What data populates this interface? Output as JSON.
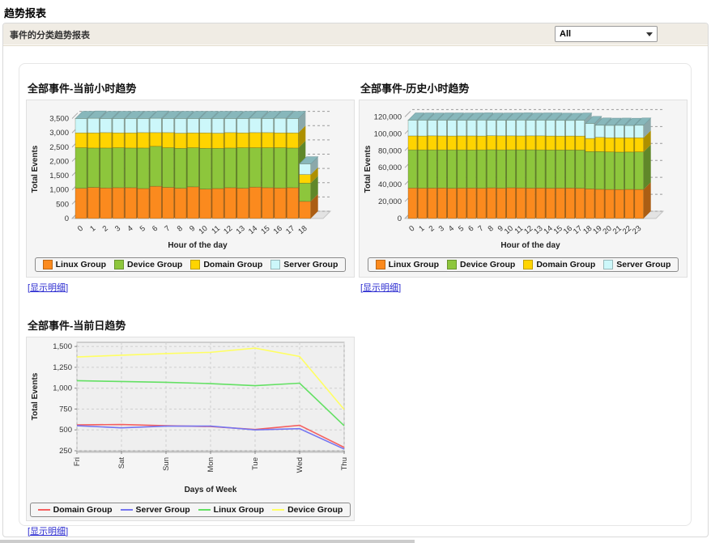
{
  "page": {
    "title": "趋势报表"
  },
  "toolbar": {
    "label": "事件的分类趋势报表",
    "filter_value": "All",
    "filter_options": [
      "All"
    ]
  },
  "links": {
    "open": "[",
    "show_detail": "显示明细",
    "close": "]"
  },
  "colors": {
    "linux_orange": "#fb8a1e",
    "device_green": "#8dc63c",
    "domain_yellow": "#ffd400",
    "server_cyan": "#ccf7fa",
    "bar_top_face": "#87b7bb",
    "line_red": "#f56060",
    "line_blue": "#7575f0",
    "line_green": "#63e063",
    "line_yellow": "#ffff63",
    "link_blue": "#2b2bd0",
    "toolbar_bg": "#f0ece4"
  },
  "chart_data": [
    {
      "id": "current-hour",
      "type": "bar",
      "variant": "stacked-3d",
      "title": "全部事件-当前小时趋势",
      "xlabel": "Hour of the day",
      "ylabel": "Total Events",
      "grid": "dashed",
      "legend_position": "bottom",
      "categories": [
        "0",
        "1",
        "2",
        "3",
        "4",
        "5",
        "6",
        "7",
        "8",
        "9",
        "10",
        "11",
        "12",
        "13",
        "14",
        "15",
        "16",
        "17",
        "18"
      ],
      "yticks": [
        0,
        500,
        1000,
        1500,
        2000,
        2500,
        3000,
        3500
      ],
      "ylim": [
        0,
        3800
      ],
      "top_face_color": "#87b7bb",
      "series": [
        {
          "name": "Linux Group",
          "color": "#fb8a1e",
          "values": [
            1060,
            1090,
            1070,
            1080,
            1080,
            1050,
            1130,
            1090,
            1060,
            1110,
            1030,
            1050,
            1080,
            1060,
            1100,
            1080,
            1070,
            1080,
            600
          ]
        },
        {
          "name": "Device Group",
          "color": "#8dc63c",
          "values": [
            1420,
            1380,
            1400,
            1400,
            1390,
            1420,
            1400,
            1390,
            1400,
            1370,
            1430,
            1410,
            1390,
            1420,
            1380,
            1400,
            1410,
            1390,
            640
          ]
        },
        {
          "name": "Domain Group",
          "color": "#ffd400",
          "values": [
            520,
            530,
            540,
            520,
            530,
            540,
            480,
            530,
            530,
            520,
            540,
            530,
            540,
            520,
            530,
            530,
            520,
            530,
            300
          ]
        },
        {
          "name": "Server Group",
          "color": "#ccf7fa",
          "values": [
            500,
            510,
            490,
            500,
            500,
            490,
            500,
            490,
            510,
            500,
            500,
            510,
            490,
            500,
            500,
            490,
            510,
            500,
            370
          ]
        }
      ]
    },
    {
      "id": "historical-hour",
      "type": "bar",
      "variant": "stacked-3d",
      "title": "全部事件-历史小时趋势",
      "xlabel": "Hour of the day",
      "ylabel": "Total Events",
      "grid": "dashed",
      "legend_position": "bottom",
      "categories": [
        "0",
        "1",
        "2",
        "3",
        "4",
        "5",
        "6",
        "7",
        "8",
        "9",
        "10",
        "11",
        "12",
        "13",
        "14",
        "15",
        "16",
        "17",
        "18",
        "19",
        "20",
        "21",
        "22",
        "23"
      ],
      "yticks": [
        0,
        20000,
        40000,
        60000,
        80000,
        100000,
        120000
      ],
      "ylim": [
        0,
        128000
      ],
      "top_face_color": "#87b7bb",
      "series": [
        {
          "name": "Linux Group",
          "color": "#fb8a1e",
          "values": [
            36000,
            35800,
            35900,
            36000,
            35700,
            35900,
            36000,
            35800,
            36200,
            35900,
            36300,
            36100,
            35900,
            36000,
            35800,
            35900,
            36000,
            35700,
            35000,
            34500,
            34300,
            34200,
            34400,
            34300
          ]
        },
        {
          "name": "Device Group",
          "color": "#8dc63c",
          "values": [
            45000,
            45200,
            45100,
            45000,
            45300,
            45100,
            44900,
            45200,
            45000,
            45100,
            44800,
            45000,
            45200,
            45000,
            45100,
            45000,
            44900,
            45100,
            44000,
            44500,
            44300,
            44200,
            44100,
            44300
          ]
        },
        {
          "name": "Domain Group",
          "color": "#ffd400",
          "values": [
            16500,
            16400,
            16600,
            16500,
            16400,
            16500,
            16600,
            16400,
            16500,
            16600,
            16500,
            16400,
            16500,
            16600,
            16500,
            16400,
            16500,
            16500,
            15500,
            16800,
            16700,
            16900,
            16800,
            16700
          ]
        },
        {
          "name": "Server Group",
          "color": "#ccf7fa",
          "values": [
            18500,
            18600,
            18300,
            18500,
            18600,
            18400,
            18500,
            18700,
            18200,
            18300,
            18400,
            18600,
            18300,
            18400,
            18600,
            18500,
            18300,
            18600,
            17500,
            14200,
            14500,
            14600,
            14400,
            14700
          ]
        }
      ]
    },
    {
      "id": "current-day",
      "type": "line",
      "title": "全部事件-当前日趋势",
      "xlabel": "Days of Week",
      "ylabel": "Total Events",
      "grid": "dashed",
      "legend_position": "bottom",
      "categories": [
        "Fri",
        "Sat",
        "Sun",
        "Mon",
        "Tue",
        "Wed",
        "Thu"
      ],
      "yticks": [
        250,
        500,
        750,
        1000,
        1250,
        1500
      ],
      "ylim": [
        250,
        1550
      ],
      "series": [
        {
          "name": "Domain Group",
          "color": "#f56060",
          "values": [
            560,
            565,
            550,
            540,
            505,
            555,
            290
          ]
        },
        {
          "name": "Server Group",
          "color": "#7575f0",
          "values": [
            550,
            525,
            545,
            545,
            500,
            515,
            270
          ]
        },
        {
          "name": "Linux Group",
          "color": "#63e063",
          "values": [
            1090,
            1080,
            1070,
            1055,
            1030,
            1060,
            550
          ]
        },
        {
          "name": "Device Group",
          "color": "#ffff63",
          "values": [
            1375,
            1395,
            1415,
            1430,
            1480,
            1380,
            745
          ]
        }
      ]
    }
  ]
}
